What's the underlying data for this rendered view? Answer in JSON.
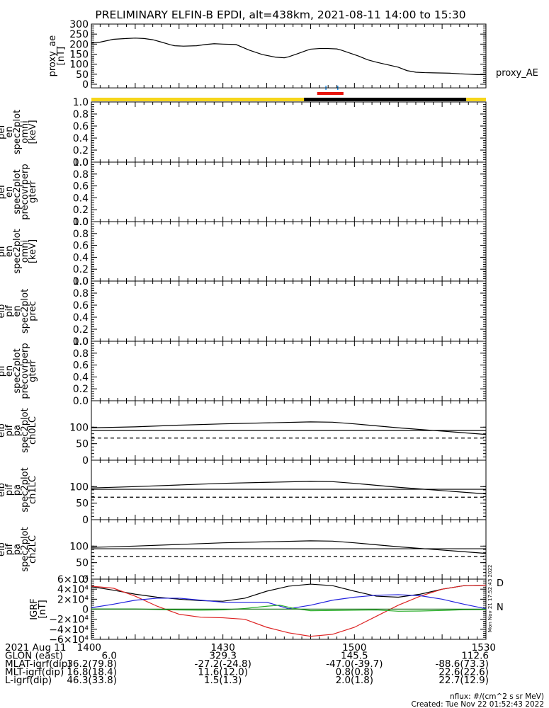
{
  "title": "PRELIMINARY ELFIN-B EPDI, alt=438km, 2021-08-11 14:00 to 15:30",
  "footer": {
    "units": "nflux: #/(cm^2 s sr MeV)",
    "created": "Created: Tue Nov 22 01:52:43 2022",
    "side_stamp": "Mon Nov 21 17:52:43 2022"
  },
  "status_bar": {
    "colors": {
      "yellow": "#f6d61a",
      "black": "#000000",
      "red": "#e8140c",
      "blue": "#1a8ce6"
    },
    "segments": [
      {
        "from": 0,
        "to": 48.5,
        "color": "yellow"
      },
      {
        "from": 48.5,
        "to": 85.5,
        "color": "black"
      },
      {
        "from": 85.5,
        "to": 90,
        "color": "yellow"
      }
    ],
    "red_interval": [
      51.5,
      57.5
    ],
    "blue_ticks": [
      53.5,
      56.2
    ]
  },
  "ephemeris": {
    "times": [
      0,
      30,
      60,
      90
    ],
    "rows": [
      {
        "label": "2021 Aug 11",
        "values": [
          "1400",
          "1430",
          "1500",
          "1530"
        ]
      },
      {
        "label": "GLON (east)",
        "values": [
          "6.0",
          "329.3",
          "145.5",
          "112.6"
        ]
      },
      {
        "label": "MLAT-igrf(dip)",
        "values": [
          "36.2(79.8)",
          "-27.2(-24.8)",
          "-47.0(-39.7)",
          "-88.6(73.3)"
        ]
      },
      {
        "label": "MLT-igrf(dip)",
        "values": [
          "16.8(18.4)",
          "11.6(12.0)",
          "0.8(0.8)",
          "22.6(22.6)"
        ]
      },
      {
        "label": "L-igrf(dip)",
        "values": [
          "46.3(33.8)",
          "1.5(1.3)",
          "2.0(1.8)",
          "22.7(12.9)"
        ]
      }
    ]
  },
  "chart_data": [
    {
      "type": "line",
      "ylabel": [
        "proxy_ae",
        "[nT]"
      ],
      "ylim": [
        0,
        300
      ],
      "yticks": [
        "300",
        "250",
        "200",
        "150",
        "100",
        "50",
        "0"
      ],
      "ytick_values": [
        300,
        250,
        200,
        150,
        100,
        50,
        0
      ],
      "legend": "proxy_AE",
      "series": [
        {
          "name": "proxy_AE",
          "color": "#000000",
          "x": [
            0,
            2,
            5,
            8,
            10,
            12,
            14,
            16,
            18,
            19,
            21,
            24,
            26,
            28,
            30,
            33,
            36,
            39,
            42,
            44,
            45,
            47,
            49,
            50,
            52,
            54,
            56,
            57,
            59,
            61,
            63,
            65,
            67,
            68,
            70,
            72,
            74,
            76,
            78,
            80,
            82,
            84,
            86,
            88,
            90
          ],
          "y": [
            205,
            210,
            224,
            228,
            230,
            228,
            222,
            210,
            197,
            192,
            190,
            192,
            198,
            202,
            200,
            198,
            170,
            148,
            135,
            132,
            137,
            152,
            168,
            175,
            178,
            178,
            176,
            170,
            155,
            140,
            122,
            110,
            100,
            95,
            85,
            68,
            60,
            58,
            57,
            56,
            55,
            52,
            50,
            48,
            48
          ]
        }
      ]
    },
    {
      "type": "spectrogram",
      "ylabel": [
        "elb",
        "pef",
        "en",
        "spec2plot",
        "omni",
        "[keV]"
      ],
      "ylim": [
        0,
        1
      ],
      "yticks": [
        "1.0",
        "0.8",
        "0.6",
        "0.4",
        "0.2",
        "0.0"
      ],
      "ytick_values": [
        1,
        0.8,
        0.6,
        0.4,
        0.2,
        0
      ]
    },
    {
      "type": "spectrogram",
      "ylabel": [
        "elb",
        "pef",
        "en",
        "spec2plot",
        "precovrperp",
        "gterr"
      ],
      "ylim": [
        0,
        1
      ],
      "yticks": [
        "1.0",
        "0.8",
        "0.6",
        "0.4",
        "0.2",
        "0.0"
      ],
      "ytick_values": [
        1,
        0.8,
        0.6,
        0.4,
        0.2,
        0
      ]
    },
    {
      "type": "spectrogram",
      "ylabel": [
        "elb",
        "pif",
        "en",
        "spec2plot",
        "omni",
        "[keV]"
      ],
      "ylim": [
        0,
        1
      ],
      "yticks": [
        "1.0",
        "0.8",
        "0.6",
        "0.4",
        "0.2",
        "0.0"
      ],
      "ytick_values": [
        1,
        0.8,
        0.6,
        0.4,
        0.2,
        0
      ]
    },
    {
      "type": "spectrogram",
      "ylabel": [
        "elb",
        "pif",
        "en",
        "spec2plot",
        "prec"
      ],
      "ylim": [
        0,
        1
      ],
      "yticks": [
        "1.0",
        "0.8",
        "0.6",
        "0.4",
        "0.2",
        "0.0"
      ],
      "ytick_values": [
        1,
        0.8,
        0.6,
        0.4,
        0.2,
        0
      ]
    },
    {
      "type": "spectrogram",
      "ylabel": [
        "elb",
        "pif",
        "en",
        "spec2plot",
        "precovrperp",
        "gterr"
      ],
      "ylim": [
        0,
        1
      ],
      "yticks": [
        "1.0",
        "0.8",
        "0.6",
        "0.4",
        "0.2",
        "0.0"
      ],
      "ytick_values": [
        1,
        0.8,
        0.6,
        0.4,
        0.2,
        0
      ]
    },
    {
      "type": "line",
      "ylabel": [
        "elb",
        "pif",
        "pa",
        "spec2plot",
        "ch0LC"
      ],
      "ylim": [
        0,
        180
      ],
      "yticks": [
        "100",
        "50",
        "0"
      ],
      "ytick_values": [
        100,
        50,
        0
      ],
      "series": [
        {
          "name": "pitch_angle",
          "style": "solid",
          "x": [
            0,
            10,
            20,
            30,
            40,
            50,
            55,
            60,
            70,
            80,
            90
          ],
          "y": [
            98,
            101,
            106,
            110,
            113,
            116,
            115,
            110,
            98,
            88,
            78
          ]
        },
        {
          "name": "loss_cone",
          "style": "solid",
          "x": [
            0,
            90
          ],
          "y": [
            90,
            90
          ]
        },
        {
          "name": "anti_loss_cone",
          "style": "dashed",
          "x": [
            0,
            90
          ],
          "y": [
            67,
            67
          ]
        }
      ]
    },
    {
      "type": "line",
      "ylabel": [
        "elb",
        "pif",
        "pa",
        "spec2plot",
        "ch1LC"
      ],
      "ylim": [
        0,
        180
      ],
      "yticks": [
        "100",
        "50",
        "0"
      ],
      "ytick_values": [
        100,
        50,
        0
      ],
      "series": [
        {
          "name": "pitch_angle",
          "style": "solid",
          "x": [
            0,
            10,
            20,
            30,
            40,
            50,
            55,
            60,
            70,
            80,
            90
          ],
          "y": [
            96,
            100,
            105,
            110,
            113,
            116,
            115,
            110,
            98,
            88,
            78
          ]
        },
        {
          "name": "loss_cone",
          "style": "solid",
          "x": [
            0,
            90
          ],
          "y": [
            92,
            92
          ]
        },
        {
          "name": "anti_loss_cone",
          "style": "dashed",
          "x": [
            0,
            90
          ],
          "y": [
            68,
            68
          ]
        }
      ]
    },
    {
      "type": "line",
      "ylabel": [
        "elb",
        "pif",
        "pa",
        "spec2plot",
        "ch2LC"
      ],
      "ylim": [
        0,
        180
      ],
      "yticks": [
        "100",
        "50",
        "0"
      ],
      "ytick_values": [
        100,
        50,
        0
      ],
      "series": [
        {
          "name": "pitch_angle",
          "style": "solid",
          "x": [
            0,
            10,
            20,
            30,
            40,
            50,
            55,
            60,
            70,
            80,
            90
          ],
          "y": [
            96,
            100,
            105,
            110,
            113,
            116,
            115,
            110,
            98,
            88,
            78
          ]
        },
        {
          "name": "loss_cone",
          "style": "solid",
          "x": [
            0,
            90
          ],
          "y": [
            92,
            92
          ]
        },
        {
          "name": "anti_loss_cone",
          "style": "dashed",
          "x": [
            0,
            90
          ],
          "y": [
            68,
            68
          ]
        }
      ]
    },
    {
      "type": "line",
      "ylabel": [
        "IGRF",
        "[nT]"
      ],
      "ylim": [
        -60000,
        60000
      ],
      "yticks": [
        "6×10⁴",
        "4×10⁴",
        "2×10⁴",
        "0",
        "−2×10⁴",
        "−4×10⁴",
        "−6×10⁴"
      ],
      "ytick_values": [
        60000,
        40000,
        20000,
        0,
        -20000,
        -40000,
        -60000
      ],
      "legend_labels": [
        {
          "text": "D",
          "color": "#cc1111"
        },
        {
          "text": "N",
          "color": "#1a9a1a"
        }
      ],
      "series": [
        {
          "name": "black",
          "color": "#000000",
          "x": [
            0,
            5,
            10,
            15,
            20,
            25,
            30,
            35,
            40,
            45,
            50,
            55,
            60,
            65,
            70,
            75,
            80,
            85,
            90
          ],
          "y": [
            45000,
            38000,
            30000,
            24000,
            20000,
            17000,
            16000,
            22000,
            36000,
            46000,
            50000,
            47000,
            36000,
            26000,
            24000,
            30000,
            40000,
            47000,
            48000
          ]
        },
        {
          "name": "red",
          "color": "#dd2222",
          "x": [
            0,
            5,
            10,
            15,
            20,
            25,
            30,
            35,
            40,
            45,
            50,
            55,
            60,
            65,
            70,
            75,
            80,
            85,
            90
          ],
          "y": [
            46000,
            42000,
            26000,
            6000,
            -10000,
            -16000,
            -17000,
            -20000,
            -36000,
            -47000,
            -54000,
            -50000,
            -36000,
            -14000,
            8000,
            26000,
            40000,
            47000,
            48000
          ]
        },
        {
          "name": "blue",
          "color": "#2222dd",
          "x": [
            0,
            5,
            10,
            15,
            20,
            25,
            30,
            35,
            40,
            45,
            50,
            55,
            60,
            65,
            70,
            75,
            80,
            85,
            90
          ],
          "y": [
            3000,
            10000,
            18000,
            22000,
            22000,
            18000,
            14000,
            14000,
            14000,
            1000,
            8000,
            18000,
            24000,
            28000,
            29000,
            27000,
            20000,
            10000,
            1000
          ]
        },
        {
          "name": "green",
          "color": "#22aa22",
          "x": [
            0,
            10,
            20,
            25,
            30,
            35,
            40,
            43,
            46,
            50,
            55,
            60,
            65,
            70,
            75,
            80,
            85,
            90
          ],
          "y": [
            500,
            500,
            -1500,
            -1800,
            -1200,
            1500,
            6000,
            8000,
            2000,
            -3000,
            -2500,
            -2000,
            -1500,
            -4000,
            -3500,
            -2500,
            -1000,
            -500
          ]
        },
        {
          "name": "darkgreen",
          "color": "#0d6b0d",
          "x": [
            0,
            90
          ],
          "y": [
            300,
            300
          ]
        }
      ]
    }
  ]
}
